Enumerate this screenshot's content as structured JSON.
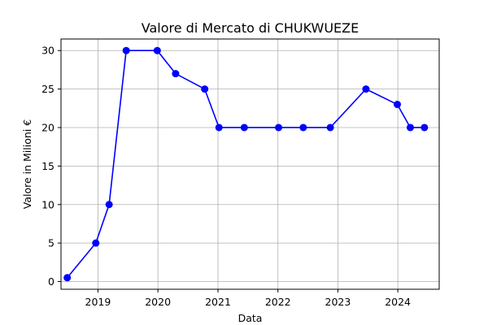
{
  "chart_data": {
    "type": "line",
    "title": "Valore di Mercato di CHUKWUEZE",
    "xlabel": "Data",
    "ylabel": "Valore in Milioni €",
    "grid": true,
    "x_axis_kind": "date",
    "x_ticks": [
      "2019",
      "2020",
      "2021",
      "2022",
      "2023",
      "2024"
    ],
    "y_ticks": [
      0,
      5,
      10,
      15,
      20,
      25,
      30
    ],
    "ylim": [
      -1,
      31.5
    ],
    "xlim": [
      "2018-05-21",
      "2024-09-09"
    ],
    "series": [
      {
        "color": "#0000ff",
        "marker": "circle",
        "points": [
          {
            "x": "2018-06-28",
            "y": 0.5
          },
          {
            "x": "2018-12-19",
            "y": 5
          },
          {
            "x": "2019-03-10",
            "y": 10
          },
          {
            "x": "2019-06-22",
            "y": 30
          },
          {
            "x": "2019-12-28",
            "y": 30
          },
          {
            "x": "2020-04-18",
            "y": 27
          },
          {
            "x": "2020-10-12",
            "y": 25
          },
          {
            "x": "2021-01-07",
            "y": 20
          },
          {
            "x": "2021-06-10",
            "y": 20
          },
          {
            "x": "2022-01-05",
            "y": 20
          },
          {
            "x": "2022-06-04",
            "y": 20
          },
          {
            "x": "2022-11-16",
            "y": 20
          },
          {
            "x": "2023-06-21",
            "y": 25
          },
          {
            "x": "2023-12-29",
            "y": 23
          },
          {
            "x": "2024-03-17",
            "y": 20
          },
          {
            "x": "2024-06-11",
            "y": 20
          }
        ]
      }
    ]
  }
}
